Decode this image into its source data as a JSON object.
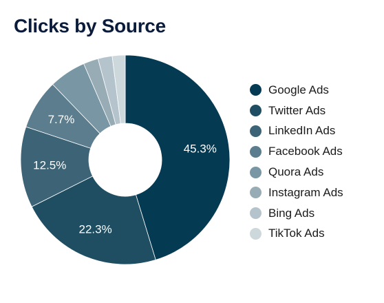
{
  "chart_data": {
    "type": "pie",
    "title": "Clicks by Source",
    "categories": [
      "Google Ads",
      "Twitter Ads",
      "LinkedIn Ads",
      "Facebook Ads",
      "Quora Ads",
      "Instagram Ads",
      "Bing Ads",
      "TikTok Ads"
    ],
    "values": [
      45.3,
      22.3,
      12.5,
      7.7,
      5.7,
      2.3,
      2.2,
      2.0
    ],
    "data_labels": [
      "45.3%",
      "22.3%",
      "12.5%",
      "7.7%",
      "",
      "",
      "",
      ""
    ],
    "colors": [
      "#053a53",
      "#1f4e62",
      "#3d6476",
      "#5b7d8d",
      "#7896a3",
      "#98acb6",
      "#b5c4cc",
      "#ccd8dc"
    ],
    "donut": true,
    "legend_position": "right"
  }
}
